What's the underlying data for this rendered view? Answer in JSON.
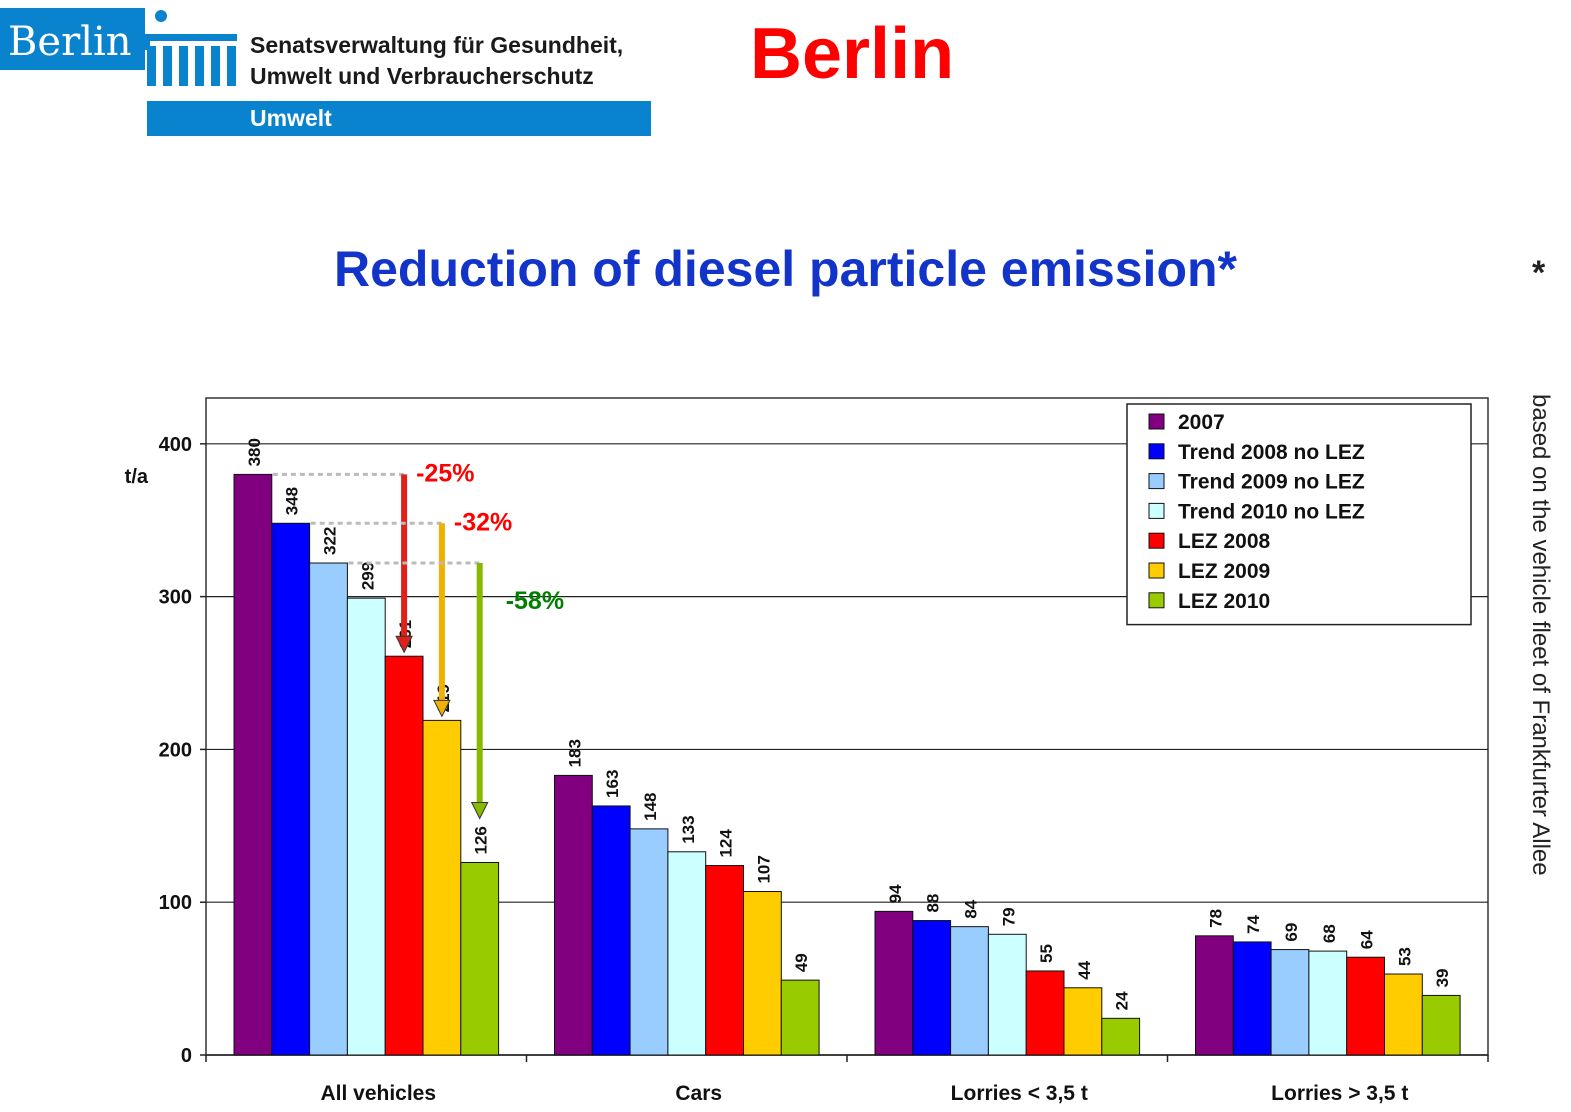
{
  "header": {
    "logo_word": "Berlin",
    "department_line1": "Senatsverwaltung für Gesundheit,",
    "department_line2": "Umwelt und Verbraucherschutz",
    "division": "Umwelt",
    "city_heading": "Berlin"
  },
  "side_note": {
    "star": "*",
    "text": "based on the vehicle fleet of Frankfurter Allee"
  },
  "colors": {
    "brand_blue": "#0a83cf",
    "heading_red": "#ff0000",
    "title_blue": "#1234c8"
  },
  "chart_data": {
    "type": "bar",
    "title": "Reduction of diesel particle emission*",
    "ylabel": "t/a",
    "xlabel": "",
    "ylim": [
      0,
      430
    ],
    "yticks": [
      "0",
      "100",
      "200",
      "300",
      "400"
    ],
    "grid": "horizontal",
    "legend_position": "top-right",
    "categories": [
      "All vehicles",
      "Cars",
      "Lorries < 3,5 t",
      "Lorries > 3,5 t"
    ],
    "series": [
      {
        "name": "2007",
        "color": "#800080",
        "values": [
          380,
          183,
          94,
          78
        ],
        "labels": [
          "380",
          "183",
          "94",
          "78"
        ]
      },
      {
        "name": "Trend 2008 no LEZ",
        "color": "#0000ff",
        "values": [
          348,
          163,
          88,
          74
        ],
        "labels": [
          "348",
          "163",
          "88",
          "74"
        ]
      },
      {
        "name": "Trend 2009 no LEZ",
        "color": "#99ccff",
        "values": [
          322,
          148,
          84,
          69
        ],
        "labels": [
          "322",
          "148",
          "84",
          "69"
        ]
      },
      {
        "name": "Trend 2010 no LEZ",
        "color": "#ccffff",
        "values": [
          299,
          133,
          79,
          68
        ],
        "labels": [
          "299",
          "133",
          "79",
          "68"
        ]
      },
      {
        "name": "LEZ 2008",
        "color": "#ff0000",
        "values": [
          261,
          124,
          55,
          64
        ],
        "labels": [
          "261",
          "124",
          "55",
          "64"
        ]
      },
      {
        "name": "LEZ 2009",
        "color": "#ffcc00",
        "values": [
          219,
          107,
          44,
          53
        ],
        "labels": [
          "219",
          "107",
          "44",
          "53"
        ]
      },
      {
        "name": "LEZ 2010",
        "color": "#99cc00",
        "values": [
          126,
          49,
          24,
          39
        ],
        "labels": [
          "126",
          "49",
          "24",
          "39"
        ]
      }
    ],
    "annotations": [
      {
        "text": "-25%",
        "color": "#ff0000",
        "series_from": 3,
        "series_to": 4
      },
      {
        "text": "-32%",
        "color": "#ff0000",
        "series_from": 3,
        "series_to": 5
      },
      {
        "text": "-58%",
        "color": "#008000",
        "series_from": 3,
        "series_to": 6
      }
    ]
  }
}
